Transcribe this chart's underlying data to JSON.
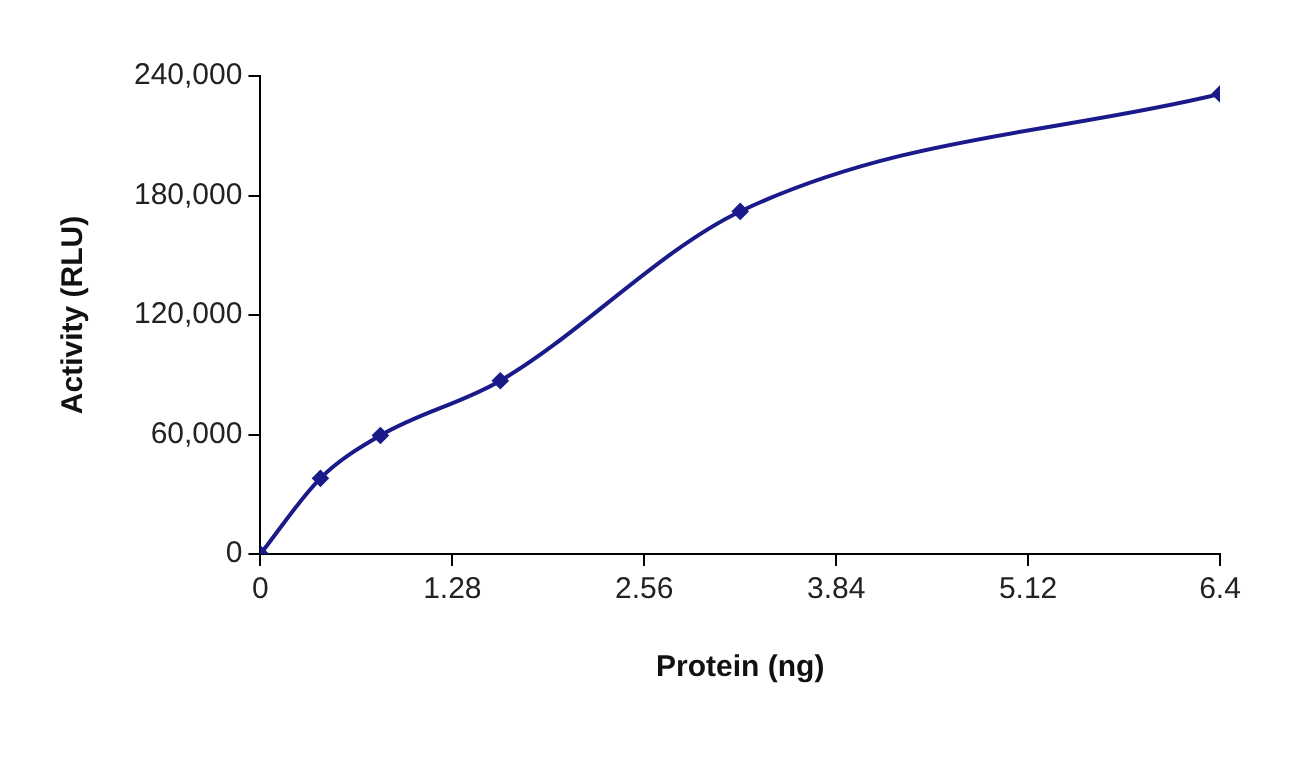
{
  "chart_data": {
    "type": "line",
    "xlabel": "Protein (ng)",
    "ylabel": "Activity (RLU)",
    "x": [
      0,
      0.4,
      0.8,
      1.6,
      3.2,
      6.4
    ],
    "series": [
      {
        "color": "#1a1a8a",
        "values": [
          0,
          38000,
          59500,
          87000,
          172000,
          231000
        ]
      }
    ],
    "xlim": [
      0,
      6.4
    ],
    "xticks": [
      0,
      1.28,
      2.56,
      3.84,
      5.12,
      6.4
    ],
    "ylim": [
      0,
      240000
    ],
    "yticks": [
      0,
      {
        "value": 60000,
        "label": "60,000"
      },
      {
        "value": 120000,
        "label": "120,000"
      },
      {
        "value": 180000,
        "label": "180,000"
      },
      {
        "value": 240000,
        "label": "240,000"
      }
    ],
    "grid": false,
    "legend": false,
    "marker": "diamond",
    "line_style": "solid"
  }
}
